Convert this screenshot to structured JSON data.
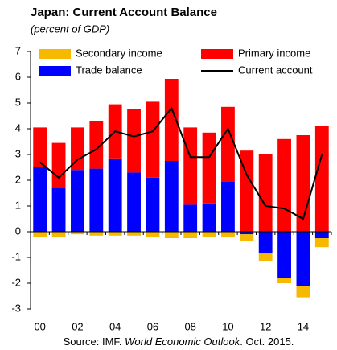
{
  "chart_data": {
    "type": "bar",
    "title": "Japan: Current Account Balance",
    "subtitle": "(percent of GDP)",
    "source": [
      "Source: IMF. ",
      "World Economic Outlook",
      ". Oct. 2015."
    ],
    "categories": [
      "00",
      null,
      "02",
      null,
      "04",
      null,
      "06",
      null,
      "08",
      null,
      "10",
      null,
      "12",
      null,
      "14",
      null
    ],
    "series": [
      {
        "name": "Secondary income",
        "type": "bar",
        "color": "#f7b800",
        "values": [
          -0.2,
          -0.2,
          -0.1,
          -0.15,
          -0.15,
          -0.15,
          -0.2,
          -0.25,
          -0.25,
          -0.2,
          -0.2,
          -0.25,
          -0.3,
          -0.2,
          -0.45,
          -0.35
        ]
      },
      {
        "name": "Primary income",
        "type": "bar",
        "color": "#ff0000",
        "values": [
          1.55,
          1.75,
          1.65,
          1.85,
          2.1,
          2.45,
          2.95,
          3.25,
          3.0,
          2.75,
          2.9,
          3.15,
          3.0,
          3.6,
          3.75,
          4.1
        ]
      },
      {
        "name": "Trade balance",
        "type": "bar",
        "color": "#0000ff",
        "values": [
          2.5,
          1.7,
          2.4,
          2.45,
          2.85,
          2.3,
          2.1,
          2.75,
          1.05,
          1.1,
          1.95,
          -0.1,
          -0.85,
          -1.8,
          -2.1,
          -0.25
        ]
      },
      {
        "name": "Current account",
        "type": "line",
        "color": "#000000",
        "values": [
          2.7,
          2.1,
          2.8,
          3.2,
          3.9,
          3.7,
          3.9,
          4.8,
          2.9,
          2.9,
          4.0,
          2.2,
          1.0,
          0.9,
          0.5,
          3.0
        ]
      }
    ],
    "ylim": [
      -3,
      7
    ],
    "yticks": [
      -3,
      -2,
      -1,
      0,
      1,
      2,
      3,
      4,
      5,
      6,
      7
    ]
  }
}
